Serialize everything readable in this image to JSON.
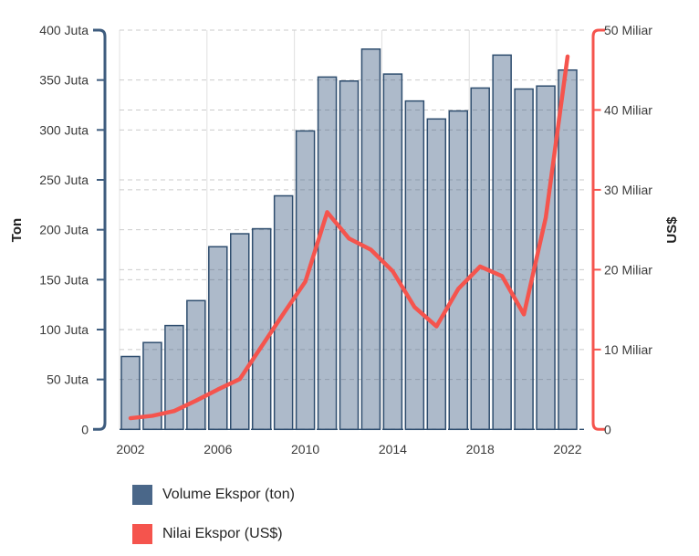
{
  "chart": {
    "left_axis": {
      "name": "Ton",
      "tick_labels": [
        "400 Juta",
        "350 Juta",
        "300 Juta",
        "250 Juta",
        "200 Juta",
        "150 Juta",
        "100 Juta",
        "50 Juta",
        "0"
      ]
    },
    "right_axis": {
      "name": "US$",
      "tick_labels": [
        "50 Miliar",
        "40 Miliar",
        "30 Miliar",
        "20 Miliar",
        "10 Miliar",
        "0"
      ]
    },
    "x_axis": {
      "visible_labels": [
        "2002",
        "2006",
        "2010",
        "2014",
        "2018",
        "2022"
      ]
    },
    "legend": [
      {
        "label": "Volume Ekspor (ton)",
        "color": "#4a6789"
      },
      {
        "label": "Nilai Ekspor (US$)",
        "color": "#f5544d"
      }
    ],
    "colors": {
      "bar_fill": "rgba(74,103,137,0.45)",
      "bar_border": "#2e4d6e",
      "left_axis_line": "#3e5c7e",
      "right_axis_line": "#f5544d",
      "line_series": "#f5544d",
      "grid_dash": "#cbcbcb",
      "grid_vertical": "#e0e0e0",
      "zero_line": "#2e4d6e",
      "tick_text": "#3a3a3a",
      "axis_name_text": "#222222"
    }
  },
  "chart_data": {
    "type": "bar+line",
    "categories": [
      2002,
      2003,
      2004,
      2005,
      2006,
      2007,
      2008,
      2009,
      2010,
      2011,
      2012,
      2013,
      2014,
      2015,
      2016,
      2017,
      2018,
      2019,
      2020,
      2021,
      2022
    ],
    "series": [
      {
        "name": "Volume Ekspor (ton)",
        "type": "bar",
        "axis": "left",
        "unit": "Juta ton",
        "values": [
          73,
          87,
          104,
          129,
          183,
          196,
          201,
          234,
          299,
          353,
          349,
          381,
          356,
          329,
          311,
          319,
          342,
          375,
          341,
          344,
          360
        ]
      },
      {
        "name": "Nilai Ekspor (US$)",
        "type": "line",
        "axis": "right",
        "unit": "Miliar US$",
        "values": [
          1.4,
          1.7,
          2.3,
          3.6,
          5.0,
          6.3,
          10.4,
          14.5,
          18.5,
          27.2,
          23.9,
          22.5,
          19.8,
          15.3,
          12.9,
          17.6,
          20.4,
          19.2,
          14.4,
          26.5,
          46.7
        ]
      }
    ],
    "left_ylim": [
      0,
      400
    ],
    "right_ylim": [
      0,
      50
    ],
    "left_tick_step": 50,
    "right_tick_step": 10,
    "grid": true,
    "legend_position": "bottom-left",
    "title": ""
  }
}
